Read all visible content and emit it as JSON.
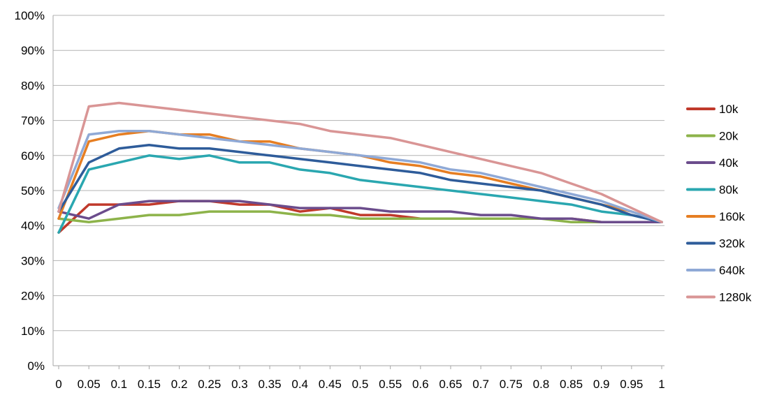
{
  "chart_data": {
    "type": "line",
    "title": "",
    "xlabel": "",
    "ylabel": "",
    "xlim": [
      0,
      1
    ],
    "ylim": [
      0,
      100
    ],
    "grid": "horizontal",
    "legend": "right",
    "x_ticks": [
      "0",
      "0.05",
      "0.1",
      "0.15",
      "0.2",
      "0.25",
      "0.3",
      "0.35",
      "0.4",
      "0.45",
      "0.5",
      "0.55",
      "0.6",
      "0.65",
      "0.7",
      "0.75",
      "0.8",
      "0.85",
      "0.9",
      "0.95",
      "1"
    ],
    "y_ticks": [
      "0%",
      "10%",
      "20%",
      "30%",
      "40%",
      "50%",
      "60%",
      "70%",
      "80%",
      "90%",
      "100%"
    ],
    "x": [
      0,
      0.05,
      0.1,
      0.15,
      0.2,
      0.25,
      0.3,
      0.35,
      0.4,
      0.45,
      0.5,
      0.55,
      0.6,
      0.65,
      0.7,
      0.75,
      0.8,
      0.85,
      0.9,
      0.95,
      1
    ],
    "series": [
      {
        "name": "10k",
        "color": "#c0392b",
        "values": [
          38,
          46,
          46,
          46,
          47,
          47,
          46,
          46,
          44,
          45,
          43,
          43,
          42,
          42,
          42,
          42,
          42,
          42,
          41,
          41,
          41
        ]
      },
      {
        "name": "20k",
        "color": "#8db34a",
        "values": [
          42,
          41,
          42,
          43,
          43,
          44,
          44,
          44,
          43,
          43,
          42,
          42,
          42,
          42,
          42,
          42,
          42,
          41,
          41,
          41,
          41
        ]
      },
      {
        "name": "40k",
        "color": "#6b4c8c",
        "values": [
          44,
          42,
          46,
          47,
          47,
          47,
          47,
          46,
          45,
          45,
          45,
          44,
          44,
          44,
          43,
          43,
          42,
          42,
          41,
          41,
          41
        ]
      },
      {
        "name": "80k",
        "color": "#2aa7b0",
        "values": [
          38,
          56,
          58,
          60,
          59,
          60,
          58,
          58,
          56,
          55,
          53,
          52,
          51,
          50,
          49,
          48,
          47,
          46,
          44,
          43,
          41
        ]
      },
      {
        "name": "160k",
        "color": "#e67e22",
        "values": [
          42,
          64,
          66,
          67,
          66,
          66,
          64,
          64,
          62,
          61,
          60,
          58,
          57,
          55,
          54,
          52,
          50,
          48,
          46,
          44,
          41
        ]
      },
      {
        "name": "320k",
        "color": "#2e5c9a",
        "values": [
          44,
          58,
          62,
          63,
          62,
          62,
          61,
          60,
          59,
          58,
          57,
          56,
          55,
          53,
          52,
          51,
          50,
          48,
          46,
          43,
          41
        ]
      },
      {
        "name": "640k",
        "color": "#8fa9d6",
        "values": [
          45,
          66,
          67,
          67,
          66,
          65,
          64,
          63,
          62,
          61,
          60,
          59,
          58,
          56,
          55,
          53,
          51,
          49,
          47,
          44,
          41
        ]
      },
      {
        "name": "1280k",
        "color": "#d99595",
        "values": [
          44,
          74,
          75,
          74,
          73,
          72,
          71,
          70,
          69,
          67,
          66,
          65,
          63,
          61,
          59,
          57,
          55,
          52,
          49,
          45,
          41
        ]
      }
    ]
  }
}
